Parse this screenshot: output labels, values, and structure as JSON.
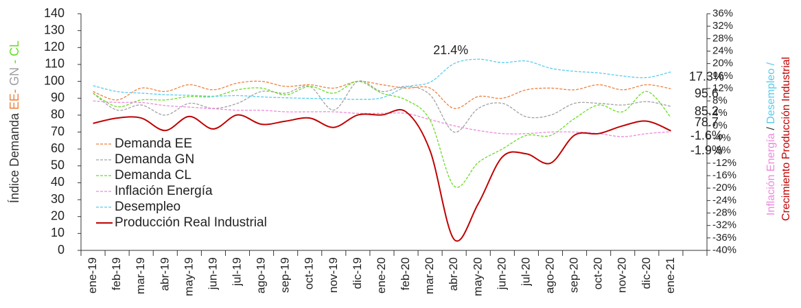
{
  "chart_data": {
    "type": "line",
    "categories": [
      "ene-19",
      "feb-19",
      "mar-19",
      "abr-19",
      "may-19",
      "jun-19",
      "jul-19",
      "ago-19",
      "sep-19",
      "oct-19",
      "nov-19",
      "dic-19",
      "ene-20",
      "feb-20",
      "mar-20",
      "abr-20",
      "may-20",
      "jun-20",
      "jul-20",
      "ago-20",
      "sep-20",
      "oct-20",
      "nov-20",
      "dic-20",
      "ene-21"
    ],
    "ylabel": [
      {
        "text": "Índice Demanda ",
        "color": "#333333"
      },
      {
        "text": "EE-",
        "color": "#f07f3c"
      },
      {
        "text": " GN ",
        "color": "#a0a0a0"
      },
      {
        "text": "- CL",
        "color": "#66dd22"
      }
    ],
    "y2label": [
      [
        {
          "text": "Inflación Energía",
          "color": "#ee88dd"
        },
        {
          "text": " / ",
          "color": "#333333"
        },
        {
          "text": "Desempleo /",
          "color": "#55ccee"
        }
      ],
      [
        {
          "text": "Crecimiento Producción Industrial",
          "color": "#c00000"
        }
      ]
    ],
    "ylim": [
      0,
      140
    ],
    "yticks": [
      0,
      10,
      20,
      30,
      40,
      50,
      60,
      70,
      80,
      90,
      100,
      110,
      120,
      130,
      140
    ],
    "y2lim": [
      -40,
      36
    ],
    "y2ticks": [
      {
        "value": -40,
        "label": "-40%"
      },
      {
        "value": -36,
        "label": "-36%"
      },
      {
        "value": -32,
        "label": "-32%"
      },
      {
        "value": -28,
        "label": "-28%"
      },
      {
        "value": -24,
        "label": "-24%"
      },
      {
        "value": -20,
        "label": "-20%"
      },
      {
        "value": -16,
        "label": "-16%"
      },
      {
        "value": -12,
        "label": "-12%"
      },
      {
        "value": -8,
        "label": "-8%"
      },
      {
        "value": -4,
        "label": "-4%"
      },
      {
        "value": 0,
        "label": "0%"
      },
      {
        "value": 4,
        "label": "4%"
      },
      {
        "value": 8,
        "label": "8%"
      },
      {
        "value": 12,
        "label": "12%"
      },
      {
        "value": 16,
        "label": "16%"
      },
      {
        "value": 20,
        "label": "20%"
      },
      {
        "value": 24,
        "label": "24%"
      },
      {
        "value": 28,
        "label": "28%"
      },
      {
        "value": 32,
        "label": "32%"
      },
      {
        "value": 36,
        "label": "36%"
      }
    ],
    "legend": "left",
    "series": [
      {
        "name": "Demanda EE",
        "color": "#f07f3c",
        "dashed": true,
        "values": [
          94,
          89,
          96,
          94,
          98,
          95,
          99,
          100,
          97,
          98,
          96,
          100,
          98,
          96,
          96,
          84,
          91,
          90,
          95,
          96,
          95,
          98,
          95,
          98,
          95.6
        ],
        "value_labels": [
          null,
          null,
          null,
          null,
          null,
          null,
          null,
          null,
          null,
          null,
          null,
          null,
          null,
          null,
          null,
          null,
          null,
          null,
          null,
          null,
          null,
          null,
          null,
          null,
          "95.6"
        ]
      },
      {
        "name": "Demanda GN",
        "color": "#a0a0a0",
        "dashed": true,
        "values": [
          93,
          83,
          86,
          80,
          87,
          84,
          87,
          94,
          93,
          97,
          83,
          100,
          94,
          97,
          92,
          70,
          84,
          87,
          79,
          80,
          87,
          87,
          86,
          88,
          85.2
        ],
        "value_labels": [
          null,
          null,
          null,
          null,
          null,
          null,
          null,
          null,
          null,
          null,
          null,
          null,
          null,
          null,
          null,
          null,
          null,
          null,
          null,
          null,
          null,
          null,
          null,
          null,
          "85.2"
        ]
      },
      {
        "name": "Demanda CL",
        "color": "#66dd22",
        "dashed": true,
        "values": [
          93,
          85,
          89,
          89,
          91,
          91,
          95,
          96,
          92,
          97,
          93,
          100,
          93,
          89,
          77,
          38,
          52,
          60,
          68,
          68,
          78,
          86,
          82,
          94,
          78.7
        ],
        "value_labels": [
          null,
          null,
          null,
          null,
          null,
          null,
          null,
          null,
          null,
          null,
          null,
          null,
          null,
          null,
          null,
          null,
          null,
          null,
          null,
          null,
          null,
          null,
          null,
          null,
          "78.7"
        ]
      },
      {
        "name": "Inflación Energía",
        "color": "#ee88dd",
        "dashed": true,
        "axis": "y2",
        "values": [
          8,
          7.5,
          7.5,
          6.5,
          6,
          5.5,
          5,
          5,
          4.5,
          4.5,
          4.5,
          4,
          4,
          4,
          2,
          0,
          -1.5,
          -2.5,
          -2.5,
          -2,
          -2,
          -2.5,
          -3.5,
          -2.5,
          -1.9
        ],
        "value_labels": [
          null,
          null,
          null,
          null,
          null,
          null,
          null,
          null,
          null,
          null,
          null,
          null,
          null,
          null,
          null,
          null,
          null,
          null,
          null,
          null,
          null,
          null,
          null,
          null,
          "-1.9%"
        ]
      },
      {
        "name": "Desempleo",
        "color": "#55ccee",
        "dashed": true,
        "axis": "y2",
        "values": [
          12.9,
          11,
          10.5,
          10,
          9.8,
          9.5,
          9.7,
          9.3,
          9,
          8.8,
          8.7,
          8.5,
          9,
          12.5,
          14,
          20,
          21.4,
          20.3,
          20.8,
          18.5,
          17.5,
          17,
          16,
          15.5,
          17.3
        ],
        "value_labels": [
          null,
          null,
          null,
          null,
          null,
          null,
          null,
          null,
          null,
          null,
          null,
          null,
          null,
          null,
          null,
          null,
          "21.4%",
          null,
          null,
          null,
          null,
          null,
          null,
          null,
          "17.3%"
        ]
      },
      {
        "name": "Producción Real Industrial",
        "color": "#c00000",
        "dashed": false,
        "axis": "y2",
        "values": [
          0.8,
          2.5,
          2.5,
          -1.5,
          3,
          -1,
          3.5,
          0.5,
          1.5,
          2.5,
          -0.5,
          3.5,
          3.5,
          4.5,
          -8,
          -36.5,
          -25,
          -10,
          -9,
          -12,
          -3,
          -2.5,
          0,
          1.5,
          -1.6
        ],
        "value_labels": [
          null,
          null,
          null,
          null,
          null,
          null,
          null,
          null,
          null,
          null,
          null,
          null,
          null,
          null,
          null,
          null,
          null,
          null,
          null,
          null,
          null,
          null,
          null,
          null,
          "-1.6%"
        ]
      }
    ]
  }
}
